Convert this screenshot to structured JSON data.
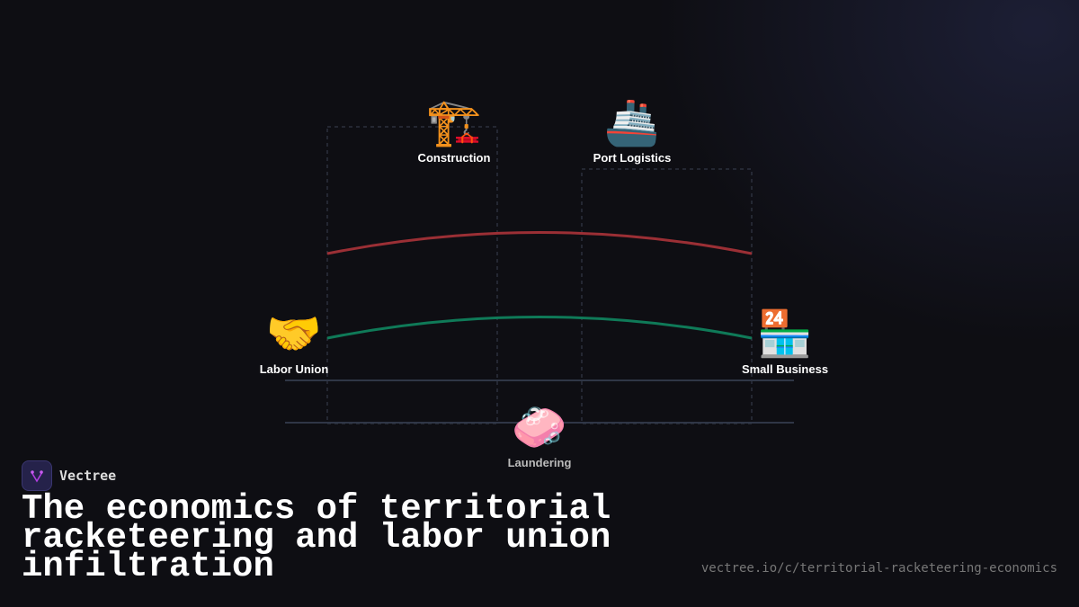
{
  "nodes": {
    "construction": {
      "icon": "construction-crane-icon",
      "emoji": "🏗️",
      "label": "Construction"
    },
    "port": {
      "icon": "ship-icon",
      "emoji": "🚢",
      "label": "Port Logistics"
    },
    "union": {
      "icon": "handshake-icon",
      "emoji": "🤝",
      "label": "Labor Union"
    },
    "business": {
      "icon": "convenience-store-icon",
      "emoji": "🏪",
      "label": "Small Business"
    },
    "laundering": {
      "icon": "soap-icon",
      "emoji": "🧼",
      "label": "Laundering"
    }
  },
  "colors": {
    "red_link": "#9b2f35",
    "green_link": "#0f7a58",
    "rule": "#2f3646",
    "dashed": "#3a4050"
  },
  "brand": {
    "name": "Vectree"
  },
  "title": "The economics of territorial racketeering and labor union infiltration",
  "url": "vectree.io/c/territorial-racketeering-economics"
}
